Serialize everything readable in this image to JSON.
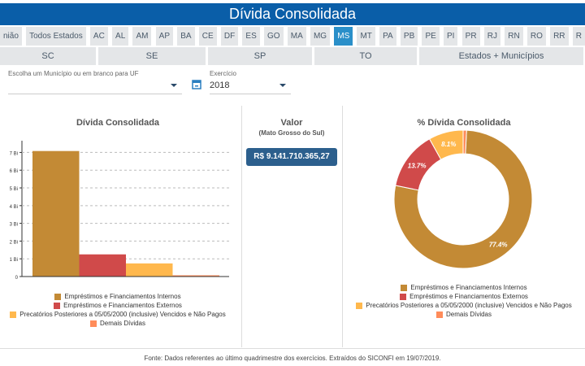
{
  "header": {
    "title": "Dívida Consolidada"
  },
  "tabs_row1": [
    "nião",
    "Todos Estados",
    "AC",
    "AL",
    "AM",
    "AP",
    "BA",
    "CE",
    "DF",
    "ES",
    "GO",
    "MA",
    "MG",
    "MS",
    "MT",
    "PA",
    "PB",
    "PE",
    "PI",
    "PR",
    "RJ",
    "RN",
    "RO",
    "RR",
    "R"
  ],
  "active_tab": "MS",
  "tabs_row2": [
    "SC",
    "SE",
    "SP",
    "TO",
    "Estados + Municípios"
  ],
  "form": {
    "municipio_label": "Escolha um Município ou em branco para UF",
    "municipio_value": "",
    "exercicio_label": "Exercício",
    "exercicio_value": "2018"
  },
  "valor": {
    "title": "Valor",
    "subtitle": "(Mato Grosso do Sul)",
    "amount": "R$  9.141.710.365,27"
  },
  "colors": {
    "header": "#0a5ea8",
    "active": "#2a8fc9",
    "series": [
      "#c38a35",
      "#d04a4a",
      "#ffb84d",
      "#ff8c5a"
    ]
  },
  "chart_data": [
    {
      "type": "bar",
      "title": "Dívida Consolidada",
      "categories": [
        "Empréstimos e Financiamentos Internos",
        "Empréstimos e Financiamentos Externos",
        "Precatórios Posteriores a 05/05/2000 (inclusive) Vencidos e Não Pagos",
        "Demais Dívidas"
      ],
      "values": [
        7.08,
        1.25,
        0.74,
        0.07
      ],
      "unit": "Bi",
      "yticks": [
        "0",
        "1 Bi",
        "2 Bi",
        "3 Bi",
        "4 Bi",
        "5 Bi",
        "6 Bi",
        "7 Bi"
      ],
      "ylim": [
        0,
        7.8
      ],
      "grid": true,
      "legend": "bottom"
    },
    {
      "type": "pie",
      "title": "% Dívida Consolidada",
      "categories": [
        "Empréstimos e Financiamentos Internos",
        "Empréstimos e Financiamentos Externos",
        "Precatórios Posteriores a 05/05/2000 (inclusive) Vencidos e Não Pagos",
        "Demais Dívidas"
      ],
      "values": [
        77.4,
        13.7,
        8.1,
        0.8
      ],
      "labels": [
        "77.4%",
        "13.7%",
        "8.1%",
        ""
      ],
      "donut": true,
      "legend": "bottom"
    }
  ],
  "footer": "Fonte: Dados referentes ao último quadrimestre dos exercícios. Extraídos do SICONFI em 19/07/2019."
}
